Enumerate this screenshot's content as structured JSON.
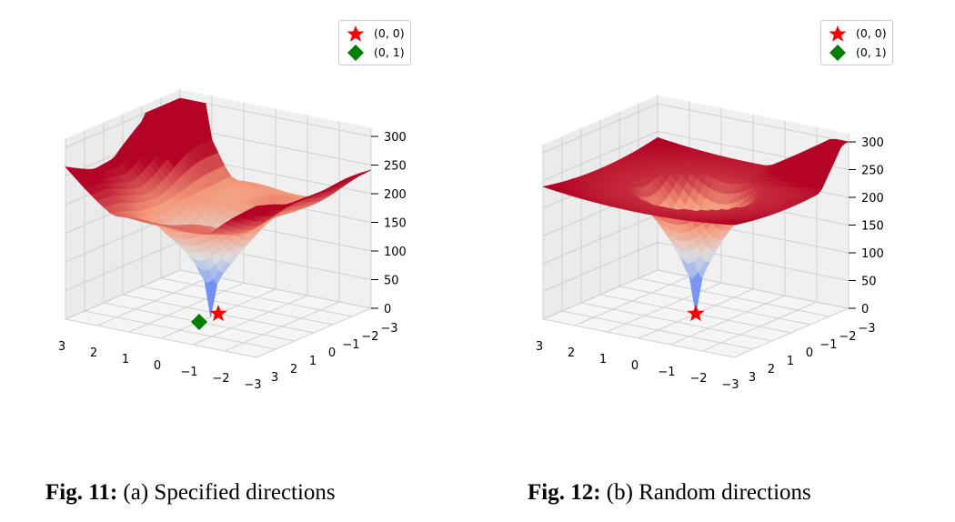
{
  "chart_data": [
    {
      "type": "surface",
      "caption_prefix": "Fig. 11:",
      "caption_text": "(a) Specified directions",
      "x_ticks": [
        "3",
        "2",
        "1",
        "0",
        "−1",
        "−2",
        "−3"
      ],
      "y_ticks": [
        "3",
        "2",
        "1",
        "0",
        "−1",
        "−2",
        "−3"
      ],
      "z_ticks": [
        "300",
        "250",
        "200",
        "150",
        "100",
        "50",
        "0"
      ],
      "zlim": [
        0,
        300
      ],
      "xlim": [
        -3,
        3
      ],
      "ylim": [
        -3,
        3
      ],
      "colormap": "coolwarm",
      "legend": [
        {
          "label": "(0, 0)",
          "marker": "star",
          "color": "#ff0000"
        },
        {
          "label": "(0, 1)",
          "marker": "diamond",
          "color": "#008000"
        }
      ],
      "points": [
        {
          "label": "(0, 0)",
          "x": 0,
          "y": 0,
          "z": 0
        },
        {
          "label": "(0, 1)",
          "x": 0,
          "y": 1,
          "z": 0
        }
      ]
    },
    {
      "type": "surface",
      "caption_prefix": "Fig. 12:",
      "caption_text": "(b) Random directions",
      "x_ticks": [
        "3",
        "2",
        "1",
        "0",
        "−1",
        "−2",
        "−3"
      ],
      "y_ticks": [
        "3",
        "2",
        "1",
        "0",
        "−1",
        "−2",
        "−3"
      ],
      "z_ticks": [
        "300",
        "250",
        "200",
        "150",
        "100",
        "50",
        "0"
      ],
      "zlim": [
        0,
        300
      ],
      "xlim": [
        -3,
        3
      ],
      "ylim": [
        -3,
        3
      ],
      "colormap": "coolwarm",
      "legend": [
        {
          "label": "(0, 0)",
          "marker": "star",
          "color": "#ff0000"
        },
        {
          "label": "(0, 1)",
          "marker": "diamond",
          "color": "#008000"
        }
      ],
      "points": [
        {
          "label": "(0, 0)",
          "x": 0,
          "y": 0,
          "z": 0
        }
      ]
    }
  ]
}
